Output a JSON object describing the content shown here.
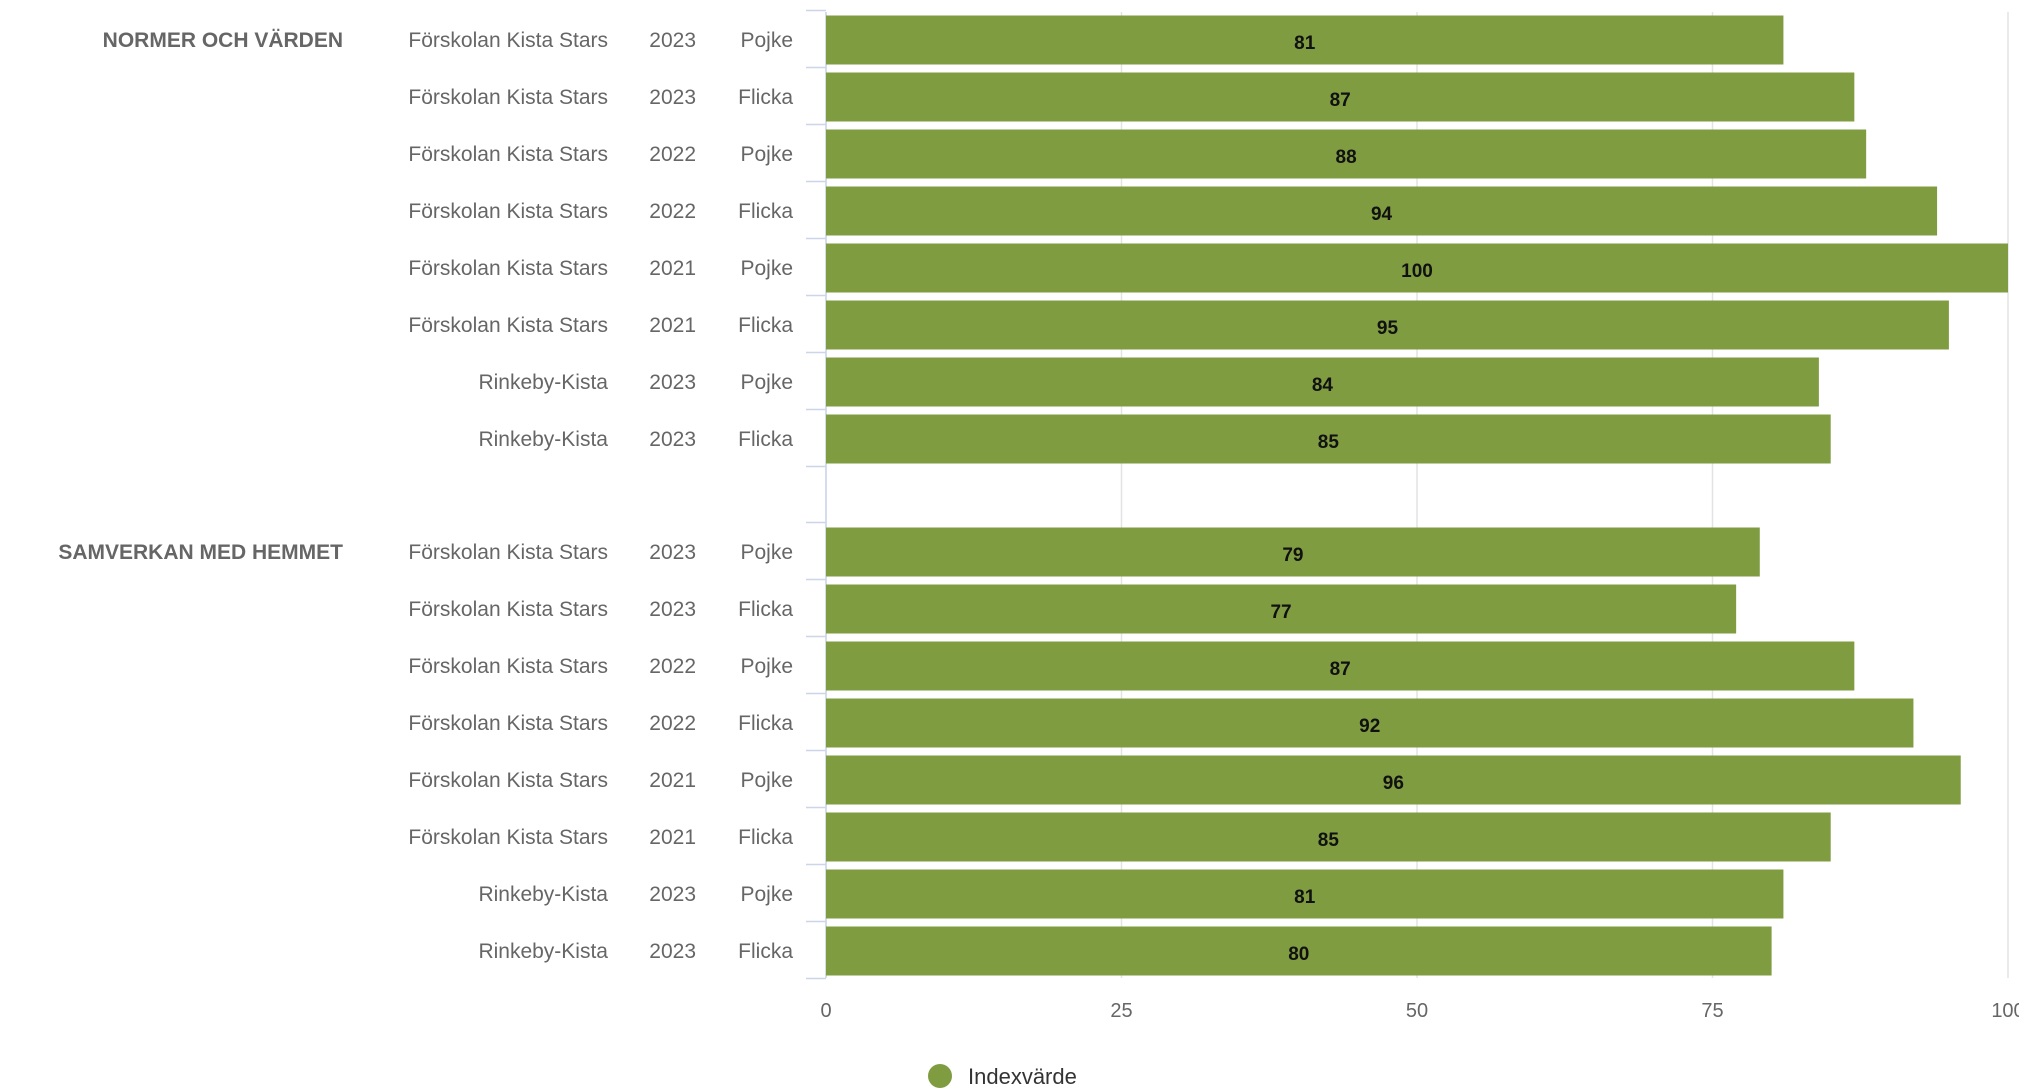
{
  "chart_data": {
    "type": "bar",
    "orientation": "horizontal",
    "title": "",
    "xlabel": "",
    "ylabel": "",
    "xlim": [
      0,
      100
    ],
    "ticks": [
      "0",
      "25",
      "50",
      "75",
      "100"
    ],
    "grid": true,
    "legend_position": "bottom-center",
    "bar_color": "#7f9c41",
    "series": [
      {
        "name": "Indexvärde"
      }
    ],
    "groups": [
      {
        "label": "NORMER OCH VÄRDEN",
        "rows": [
          {
            "unit": "Förskolan Kista Stars",
            "year": "2023",
            "gender": "Pojke",
            "value": 81
          },
          {
            "unit": "Förskolan Kista Stars",
            "year": "2023",
            "gender": "Flicka",
            "value": 87
          },
          {
            "unit": "Förskolan Kista Stars",
            "year": "2022",
            "gender": "Pojke",
            "value": 88
          },
          {
            "unit": "Förskolan Kista Stars",
            "year": "2022",
            "gender": "Flicka",
            "value": 94
          },
          {
            "unit": "Förskolan Kista Stars",
            "year": "2021",
            "gender": "Pojke",
            "value": 100
          },
          {
            "unit": "Förskolan Kista Stars",
            "year": "2021",
            "gender": "Flicka",
            "value": 95
          },
          {
            "unit": "Rinkeby-Kista",
            "year": "2023",
            "gender": "Pojke",
            "value": 84
          },
          {
            "unit": "Rinkeby-Kista",
            "year": "2023",
            "gender": "Flicka",
            "value": 85
          }
        ]
      },
      {
        "label": "SAMVERKAN MED HEMMET",
        "rows": [
          {
            "unit": "Förskolan Kista Stars",
            "year": "2023",
            "gender": "Pojke",
            "value": 79
          },
          {
            "unit": "Förskolan Kista Stars",
            "year": "2023",
            "gender": "Flicka",
            "value": 77
          },
          {
            "unit": "Förskolan Kista Stars",
            "year": "2022",
            "gender": "Pojke",
            "value": 87
          },
          {
            "unit": "Förskolan Kista Stars",
            "year": "2022",
            "gender": "Flicka",
            "value": 92
          },
          {
            "unit": "Förskolan Kista Stars",
            "year": "2021",
            "gender": "Pojke",
            "value": 96
          },
          {
            "unit": "Förskolan Kista Stars",
            "year": "2021",
            "gender": "Flicka",
            "value": 85
          },
          {
            "unit": "Rinkeby-Kista",
            "year": "2023",
            "gender": "Pojke",
            "value": 81
          },
          {
            "unit": "Rinkeby-Kista",
            "year": "2023",
            "gender": "Flicka",
            "value": 80
          }
        ]
      }
    ]
  }
}
